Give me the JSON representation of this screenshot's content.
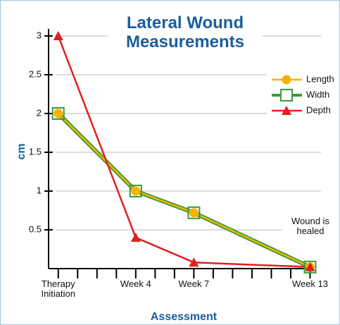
{
  "chart_data": {
    "type": "line",
    "title": "Lateral Wound Measurements",
    "xlabel": "Assessment",
    "ylabel": "cm",
    "x": [
      0,
      4,
      7,
      13
    ],
    "xlim": [
      -0.5,
      13.2
    ],
    "xticks": [
      {
        "value": 0,
        "label": "Therapy Initiation"
      },
      {
        "value": 4,
        "label": "Week 4"
      },
      {
        "value": 7,
        "label": "Week 7"
      },
      {
        "value": 13,
        "label": "Week 13"
      }
    ],
    "minor_xticks": [
      1,
      2,
      3,
      5,
      6,
      8,
      9,
      10,
      11,
      12
    ],
    "ylim": [
      0,
      3
    ],
    "yticks": [
      0.5,
      1,
      1.5,
      2,
      2.5,
      3
    ],
    "grid": true,
    "legend": "upper right",
    "series": [
      {
        "name": "Length",
        "color": "#f5b400",
        "marker": "circle",
        "values": [
          2,
          1,
          0.72,
          0.02
        ]
      },
      {
        "name": "Width",
        "color": "#3a9a3a",
        "marker": "square",
        "values": [
          2,
          1,
          0.72,
          0.02
        ]
      },
      {
        "name": "Depth",
        "color": "#e02020",
        "marker": "triangle",
        "values": [
          3,
          0.4,
          0.08,
          0.02
        ]
      }
    ],
    "annotation": "Wound is healed"
  }
}
